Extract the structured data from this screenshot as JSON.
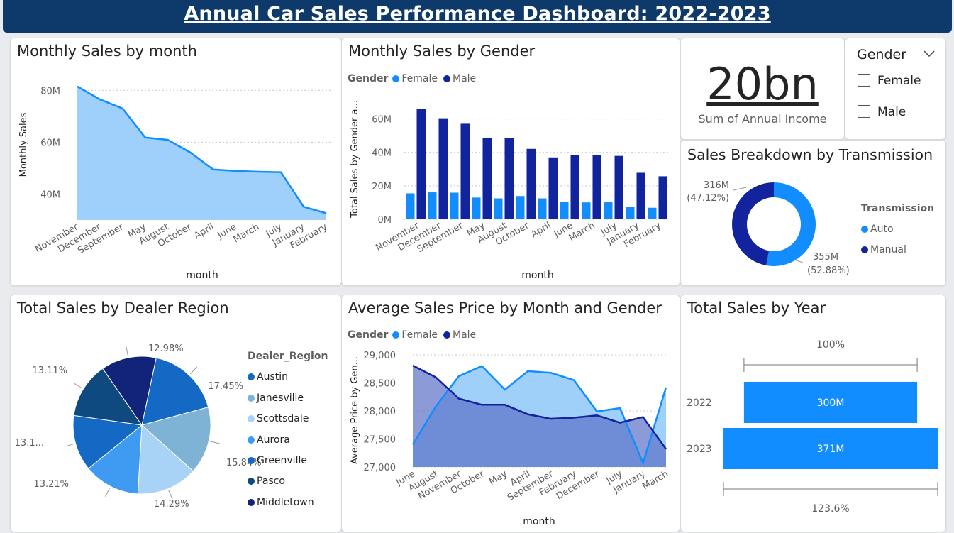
{
  "header": {
    "title": "Annual Car Sales Performance Dashboard: 2022-2023"
  },
  "monthly_sales": {
    "title": "Monthly Sales by month",
    "chart_data": {
      "type": "area",
      "title": "Monthly Sales by month",
      "xlabel": "month",
      "ylabel": "Monthly Sales",
      "categories": [
        "November",
        "December",
        "September",
        "May",
        "August",
        "October",
        "April",
        "June",
        "March",
        "July",
        "January",
        "February"
      ],
      "values": [
        81.5,
        76.5,
        73.0,
        61.8,
        60.9,
        56.0,
        49.5,
        48.9,
        48.6,
        48.4,
        35.1,
        32.6
      ],
      "y_ticks": [
        "80M",
        "60M",
        "40M"
      ],
      "y_tick_values": [
        80,
        60,
        40
      ],
      "ylim": [
        30,
        85
      ],
      "color": "#118dff"
    }
  },
  "gender_sales": {
    "title": "Monthly Sales by Gender",
    "legend_title": "Gender",
    "chart_data": {
      "type": "bar",
      "title": "Monthly Sales by Gender",
      "xlabel": "month",
      "ylabel": "Total Sales by Gender a...",
      "categories": [
        "November",
        "December",
        "September",
        "May",
        "August",
        "October",
        "April",
        "June",
        "March",
        "July",
        "January",
        "February"
      ],
      "series": [
        {
          "name": "Female",
          "color": "#118dff",
          "values": [
            15.5,
            16.1,
            15.9,
            13.0,
            12.5,
            13.9,
            12.5,
            10.5,
            10.1,
            10.5,
            7.3,
            6.9
          ]
        },
        {
          "name": "Male",
          "color": "#12239e",
          "values": [
            66.0,
            60.4,
            57.1,
            48.8,
            48.4,
            42.1,
            37.0,
            38.4,
            38.5,
            37.9,
            27.8,
            25.7
          ]
        }
      ],
      "y_ticks": [
        "60M",
        "40M",
        "20M",
        "0M"
      ],
      "y_tick_values": [
        60,
        40,
        20,
        0
      ],
      "ylim": [
        0,
        70
      ]
    }
  },
  "kpi": {
    "value": "20bn",
    "label": "Sum of Annual Income"
  },
  "slicer": {
    "title": "Gender",
    "options": [
      "Female",
      "Male"
    ]
  },
  "transmission": {
    "title": "Sales Breakdown by Transmission",
    "legend_title": "Transmission",
    "chart_data": {
      "type": "pie",
      "title": "Sales Breakdown by Transmission",
      "labels": [
        "Auto",
        "Manual"
      ],
      "values": [
        355,
        316
      ],
      "percents": [
        52.88,
        47.12
      ],
      "colors": [
        "#118dff",
        "#12239e"
      ],
      "data_labels": [
        [
          "355M",
          "(52.88%)"
        ],
        [
          "316M",
          "(47.12%)"
        ]
      ]
    }
  },
  "region": {
    "title": "Total Sales by Dealer Region",
    "legend_title": "Dealer_Region",
    "chart_data": {
      "type": "pie",
      "title": "Total Sales by Dealer Region",
      "labels": [
        "Austin",
        "Janesville",
        "Scottsdale",
        "Aurora",
        "Greenville",
        "Pasco",
        "Middletown"
      ],
      "values": [
        17.45,
        15.84,
        14.29,
        13.21,
        13.1,
        13.11,
        12.98
      ],
      "colors": [
        "#1469c4",
        "#7fb3d5",
        "#a9d2f7",
        "#3f9bf2",
        "#1469c4",
        "#0e4a80",
        "#12237a"
      ],
      "data_labels": [
        "17.45%",
        "15.84%",
        "14.29%",
        "13.21%",
        "13.1...",
        "13.11%",
        "12.98%"
      ]
    }
  },
  "avg_price": {
    "title": "Average Sales Price by Month and Gender",
    "legend_title": "Gender",
    "chart_data": {
      "type": "area",
      "title": "Average Sales Price by Month and Gender",
      "xlabel": "month",
      "ylabel": "Average Price by Gen...",
      "categories": [
        "June",
        "August",
        "November",
        "October",
        "May",
        "April",
        "September",
        "February",
        "December",
        "July",
        "January",
        "March"
      ],
      "series": [
        {
          "name": "Female",
          "color": "#118dff",
          "values": [
            27400,
            28080,
            28620,
            28800,
            28380,
            28710,
            28680,
            28550,
            27990,
            28050,
            27070,
            28420
          ]
        },
        {
          "name": "Male",
          "color": "#12239e",
          "values": [
            28810,
            28600,
            28220,
            28110,
            28110,
            27940,
            27860,
            27880,
            27920,
            27790,
            27890,
            27320
          ]
        }
      ],
      "y_ticks": [
        "29,000",
        "28,500",
        "28,000",
        "27,500",
        "27,000"
      ],
      "y_tick_values": [
        29000,
        28500,
        28000,
        27500,
        27000
      ],
      "ylim": [
        27000,
        29000
      ]
    }
  },
  "year_sales": {
    "title": "Total Sales by Year",
    "chart_data": {
      "type": "bar",
      "title": "Total Sales by Year",
      "categories": [
        "2022",
        "2023"
      ],
      "values": [
        300,
        371
      ],
      "value_labels": [
        "300M",
        "371M"
      ],
      "top_annotation": "100%",
      "bottom_annotation": "123.6%",
      "color": "#118dff"
    }
  }
}
